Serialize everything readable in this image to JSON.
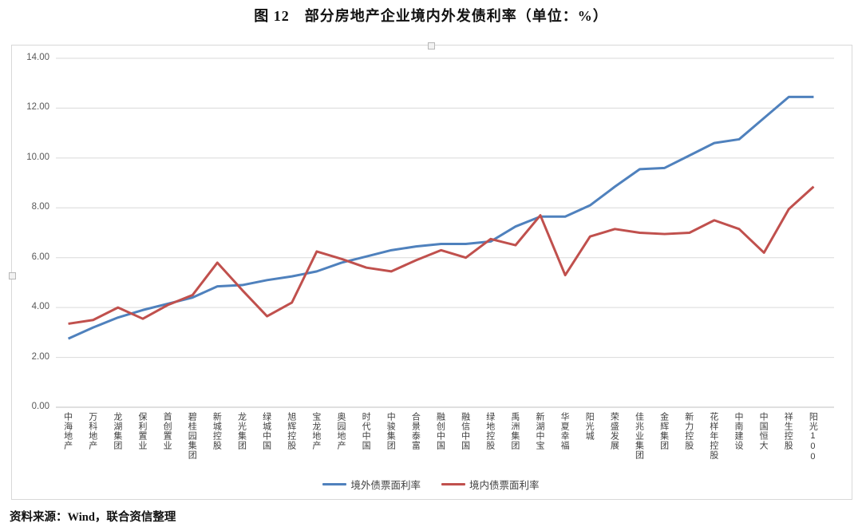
{
  "page": {
    "title": "图 12　部分房地产企业境内外发债利率（单位：%）",
    "source": "资料来源：Wind，联合资信整理"
  },
  "chart_data": {
    "type": "line",
    "title": "图 12　部分房地产企业境内外发债利率（单位：%）",
    "unit": "%",
    "categories": [
      "中海地产",
      "万科地产",
      "龙湖集团",
      "保利置业",
      "首创置业",
      "碧桂园集团",
      "新城控股",
      "龙光集团",
      "绿城中国",
      "旭辉控股",
      "宝龙地产",
      "奥园地产",
      "时代中国",
      "中骏集团",
      "合景泰富",
      "融创中国",
      "融信中国",
      "绿地控股",
      "禹洲集团",
      "新湖中宝",
      "华夏幸福",
      "阳光城",
      "荣盛发展",
      "佳兆业集团",
      "金辉集团",
      "新力控股",
      "花样年控股",
      "中南建设",
      "中国恒大",
      "祥生控股",
      "阳光100"
    ],
    "series": [
      {
        "name": "境外债票面利率",
        "color": "#4F81BD",
        "values": [
          2.75,
          3.2,
          3.6,
          3.9,
          4.15,
          4.4,
          4.85,
          4.9,
          5.1,
          5.25,
          5.45,
          5.8,
          6.05,
          6.3,
          6.45,
          6.55,
          6.55,
          6.65,
          7.25,
          7.65,
          7.65,
          8.1,
          8.85,
          9.55,
          9.6,
          10.1,
          10.6,
          10.75,
          11.6,
          12.45,
          12.45
        ]
      },
      {
        "name": "境内债票面利率",
        "color": "#C0504D",
        "values": [
          3.35,
          3.5,
          4.0,
          3.55,
          4.1,
          4.5,
          5.8,
          4.7,
          3.65,
          4.2,
          6.25,
          5.95,
          5.6,
          5.45,
          5.9,
          6.3,
          6.0,
          6.75,
          6.5,
          7.7,
          5.3,
          6.85,
          7.15,
          7.0,
          6.95,
          7.0,
          7.5,
          7.15,
          6.2,
          7.95,
          8.85
        ]
      }
    ],
    "ylim": [
      0,
      14
    ],
    "y_tick_step": 2,
    "y_tick_labels": [
      "0.00",
      "2.00",
      "4.00",
      "6.00",
      "8.00",
      "10.00",
      "12.00",
      "14.00"
    ],
    "grid": "horizontal-only",
    "gridline_color": "#d9d9d9",
    "axis_line_color": "#bfbfbf",
    "legend_position": "bottom"
  }
}
